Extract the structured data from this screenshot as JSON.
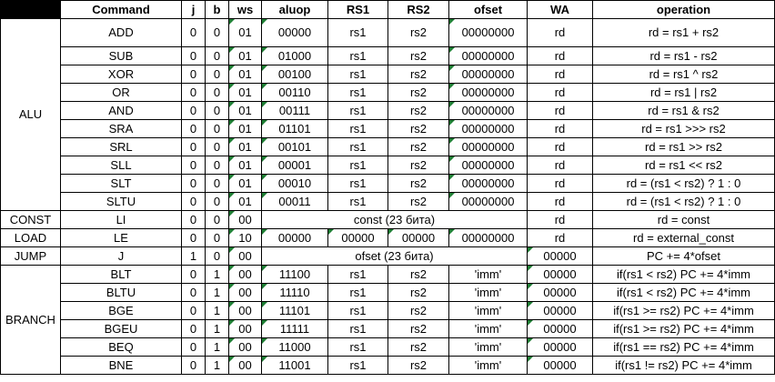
{
  "columns": [
    "ALU",
    "Command",
    "j",
    "b",
    "ws",
    "aluop",
    "RS1",
    "RS2",
    "ofset",
    "WA",
    "operation"
  ],
  "groups": [
    {
      "label": "ALU"
    },
    {
      "label": "CONST"
    },
    {
      "label": "LOAD"
    },
    {
      "label": "JUMP"
    },
    {
      "label": "BRANCH"
    }
  ],
  "rows": [
    {
      "cmd": "ADD",
      "j": "0",
      "b": "0",
      "ws": "01",
      "aluop": "00000",
      "rs1": "rs1",
      "rs2": "rs2",
      "ofset": "00000000",
      "wa": "rd",
      "op": "rd = rs1 + rs2"
    },
    {
      "cmd": "SUB",
      "j": "0",
      "b": "0",
      "ws": "01",
      "aluop": "01000",
      "rs1": "rs1",
      "rs2": "rs2",
      "ofset": "00000000",
      "wa": "rd",
      "op": "rd = rs1 - rs2"
    },
    {
      "cmd": "XOR",
      "j": "0",
      "b": "0",
      "ws": "01",
      "aluop": "00100",
      "rs1": "rs1",
      "rs2": "rs2",
      "ofset": "00000000",
      "wa": "rd",
      "op": "rd = rs1 ^ rs2"
    },
    {
      "cmd": "OR",
      "j": "0",
      "b": "0",
      "ws": "01",
      "aluop": "00110",
      "rs1": "rs1",
      "rs2": "rs2",
      "ofset": "00000000",
      "wa": "rd",
      "op": "rd = rs1 | rs2"
    },
    {
      "cmd": "AND",
      "j": "0",
      "b": "0",
      "ws": "01",
      "aluop": "00111",
      "rs1": "rs1",
      "rs2": "rs2",
      "ofset": "00000000",
      "wa": "rd",
      "op": "rd = rs1 & rs2"
    },
    {
      "cmd": "SRA",
      "j": "0",
      "b": "0",
      "ws": "01",
      "aluop": "01101",
      "rs1": "rs1",
      "rs2": "rs2",
      "ofset": "00000000",
      "wa": "rd",
      "op": "rd = rs1 >>> rs2"
    },
    {
      "cmd": "SRL",
      "j": "0",
      "b": "0",
      "ws": "01",
      "aluop": "00101",
      "rs1": "rs1",
      "rs2": "rs2",
      "ofset": "00000000",
      "wa": "rd",
      "op": "rd = rs1 >> rs2"
    },
    {
      "cmd": "SLL",
      "j": "0",
      "b": "0",
      "ws": "01",
      "aluop": "00001",
      "rs1": "rs1",
      "rs2": "rs2",
      "ofset": "00000000",
      "wa": "rd",
      "op": "rd = rs1 << rs2"
    },
    {
      "cmd": "SLT",
      "j": "0",
      "b": "0",
      "ws": "01",
      "aluop": "00010",
      "rs1": "rs1",
      "rs2": "rs2",
      "ofset": "00000000",
      "wa": "rd",
      "op": "rd = (rs1 < rs2) ? 1 : 0"
    },
    {
      "cmd": "SLTU",
      "j": "0",
      "b": "0",
      "ws": "01",
      "aluop": "00011",
      "rs1": "rs1",
      "rs2": "rs2",
      "ofset": "00000000",
      "wa": "rd",
      "op": "rd = (rs1 < rs2) ? 1 : 0"
    },
    {
      "cmd": "LI",
      "j": "0",
      "b": "0",
      "ws": "00",
      "merged": "const (23 бита)",
      "wa": "rd",
      "op": "rd = const"
    },
    {
      "cmd": "LE",
      "j": "0",
      "b": "0",
      "ws": "10",
      "aluop": "00000",
      "rs1": "00000",
      "rs2": "00000",
      "ofset": "00000000",
      "wa": "rd",
      "op": "rd = external_const"
    },
    {
      "cmd": "J",
      "j": "1",
      "b": "0",
      "ws": "00",
      "merged": "ofset (23 бита)",
      "wa": "00000",
      "op": "PC += 4*ofset"
    },
    {
      "cmd": "BLT",
      "j": "0",
      "b": "1",
      "ws": "00",
      "aluop": "11100",
      "rs1": "rs1",
      "rs2": "rs2",
      "ofset": "'imm'",
      "wa": "00000",
      "op": "if(rs1 < rs2) PC += 4*imm"
    },
    {
      "cmd": "BLTU",
      "j": "0",
      "b": "1",
      "ws": "00",
      "aluop": "11110",
      "rs1": "rs1",
      "rs2": "rs2",
      "ofset": "'imm'",
      "wa": "00000",
      "op": "if(rs1 < rs2) PC += 4*imm"
    },
    {
      "cmd": "BGE",
      "j": "0",
      "b": "1",
      "ws": "00",
      "aluop": "11101",
      "rs1": "rs1",
      "rs2": "rs2",
      "ofset": "'imm'",
      "wa": "00000",
      "op": "if(rs1 >= rs2) PC += 4*imm"
    },
    {
      "cmd": "BGEU",
      "j": "0",
      "b": "1",
      "ws": "00",
      "aluop": "11111",
      "rs1": "rs1",
      "rs2": "rs2",
      "ofset": "'imm'",
      "wa": "00000",
      "op": "if(rs1 >= rs2) PC += 4*imm"
    },
    {
      "cmd": "BEQ",
      "j": "0",
      "b": "1",
      "ws": "00",
      "aluop": "11000",
      "rs1": "rs1",
      "rs2": "rs2",
      "ofset": "'imm'",
      "wa": "00000",
      "op": "if(rs1 == rs2) PC += 4*imm"
    },
    {
      "cmd": "BNE",
      "j": "0",
      "b": "1",
      "ws": "00",
      "aluop": "11001",
      "rs1": "rs1",
      "rs2": "rs2",
      "ofset": "'imm'",
      "wa": "00000",
      "op": "if(rs1 != rs2) PC += 4*imm"
    }
  ],
  "colors": {
    "grid": "#000000",
    "marker": "#1e7e34",
    "header_corner": "#000000"
  }
}
